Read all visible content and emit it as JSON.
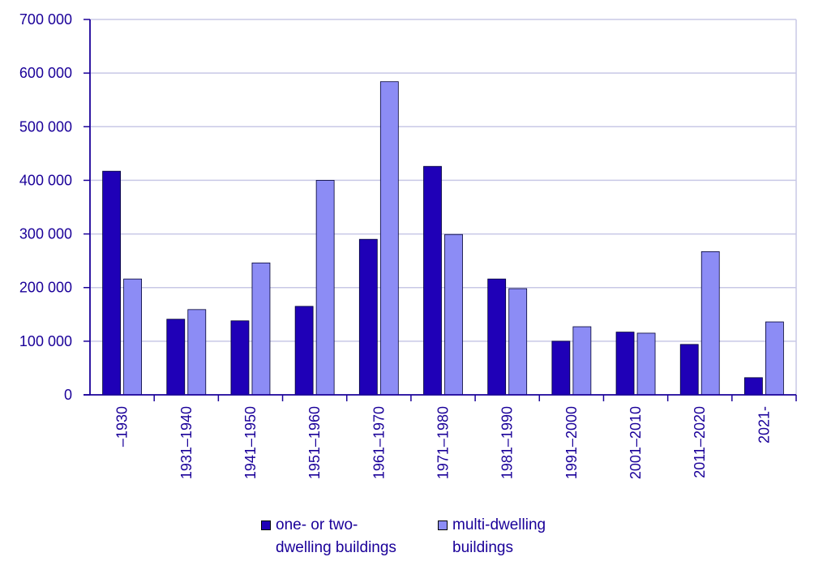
{
  "chart_data": {
    "type": "bar",
    "categories": [
      "–1930",
      "1931–1940",
      "1941–1950",
      "1951–1960",
      "1961–1970",
      "1971–1980",
      "1981–1990",
      "1991–2000",
      "2001–2010",
      "2011–2020",
      "2021-"
    ],
    "series": [
      {
        "name": "one- or two-\ndwelling buildings",
        "values": [
          417000,
          141000,
          138000,
          165000,
          290000,
          426000,
          216000,
          100000,
          117000,
          94000,
          32000
        ]
      },
      {
        "name": "multi-dwelling\nbuildings",
        "values": [
          216000,
          159000,
          246000,
          400000,
          584000,
          299000,
          198000,
          127000,
          115000,
          267000,
          136000
        ]
      }
    ],
    "y_ticks": [
      "0",
      "100 000",
      "200 000",
      "300 000",
      "400 000",
      "500 000",
      "600 000",
      "700 000"
    ],
    "ylim": [
      0,
      700000
    ],
    "grid": true,
    "legend_position": "bottom",
    "xlabel": "",
    "ylabel": "",
    "title": ""
  },
  "colors": {
    "series": [
      "#1f00b7",
      "#8c8cf5"
    ],
    "text": "#1a0099",
    "grid": "#c8c8e6",
    "axis": "#1a0099"
  }
}
